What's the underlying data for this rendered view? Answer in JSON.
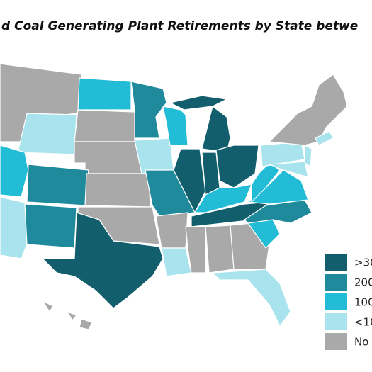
{
  "title": "d Coal Generating Plant Retirements by State betwe",
  "legend": [
    {
      "label": ">30",
      "color": "#135e6c"
    },
    {
      "label": "200",
      "color": "#1f8a9c"
    },
    {
      "label": "100",
      "color": "#22bcd6"
    },
    {
      "label": "<10",
      "color": "#a9e4ee"
    },
    {
      "label": "No",
      "color": "#a9a9a9"
    }
  ]
}
